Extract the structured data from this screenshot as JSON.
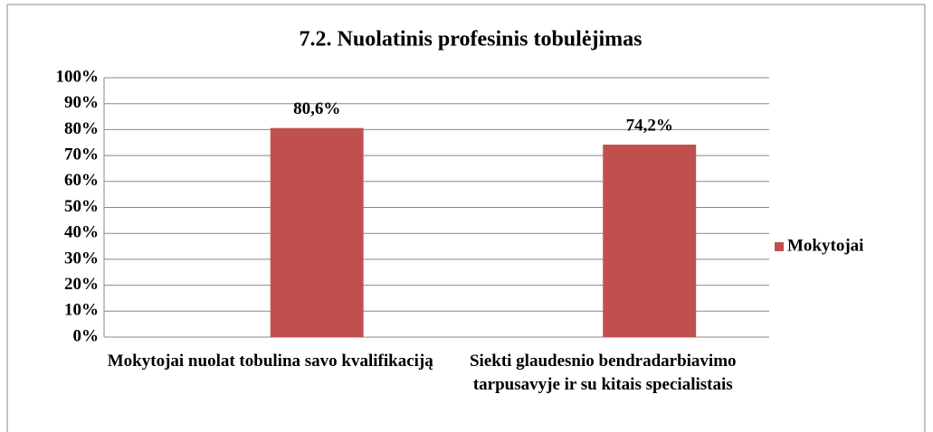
{
  "chart_data": {
    "type": "bar",
    "title": "7.2. Nuolatinis  profesinis  tobulėjimas",
    "categories": [
      "Mokytojai nuolat tobulina savo kvalifikaciją",
      "Siekti glaudesnio bendradarbiavimo tarpusavyje ir su kitais specialistais"
    ],
    "series": [
      {
        "name": "Mokytojai",
        "color": "#c0504d",
        "values": [
          80.6,
          74.2
        ],
        "value_labels": [
          "80,6%",
          "74,2%"
        ]
      }
    ],
    "ylim": [
      0,
      100
    ],
    "yticks": [
      {
        "value": 0,
        "label": "0%"
      },
      {
        "value": 10,
        "label": "10%"
      },
      {
        "value": 20,
        "label": "20%"
      },
      {
        "value": 30,
        "label": "30%"
      },
      {
        "value": 40,
        "label": "40%"
      },
      {
        "value": 50,
        "label": "50%"
      },
      {
        "value": 60,
        "label": "60%"
      },
      {
        "value": 70,
        "label": "70%"
      },
      {
        "value": 80,
        "label": "80%"
      },
      {
        "value": 90,
        "label": "90%"
      },
      {
        "value": 100,
        "label": "100%"
      }
    ],
    "grid": true,
    "legend": "right"
  }
}
